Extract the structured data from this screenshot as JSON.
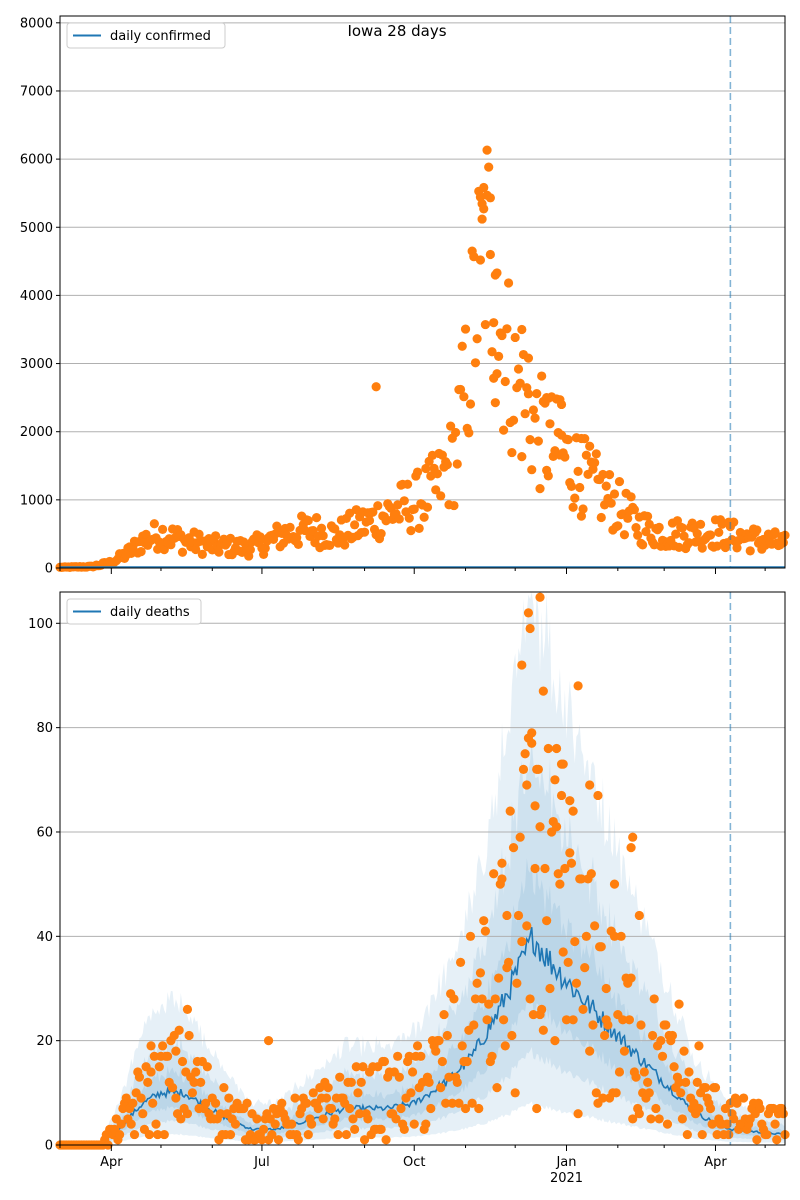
{
  "figure": {
    "title": "Iowa 28 days",
    "colors": {
      "line": "#1f77b4",
      "points": "#ff7f0e",
      "band": "#1f77b4",
      "grid": "#b0b0b0",
      "vline": "#1f77b4"
    }
  },
  "chart_data": [
    {
      "type": "scatter",
      "legend": "daily confirmed",
      "legend_position": "top-left",
      "ylim": [
        0,
        8100
      ],
      "yticks": [
        0,
        1000,
        2000,
        3000,
        4000,
        5000,
        6000,
        7000,
        8000
      ],
      "xlim": [
        "2020-03-01",
        "2021-05-13"
      ],
      "grid": "y",
      "vline": "2021-04-10",
      "anchors": [
        [
          "2020-03-01",
          10
        ],
        [
          "2020-03-20",
          20
        ],
        [
          "2020-04-01",
          80
        ],
        [
          "2020-04-10",
          200
        ],
        [
          "2020-04-20",
          400
        ],
        [
          "2020-05-01",
          500
        ],
        [
          "2020-05-15",
          400
        ],
        [
          "2020-06-01",
          330
        ],
        [
          "2020-06-20",
          300
        ],
        [
          "2020-07-01",
          350
        ],
        [
          "2020-07-15",
          500
        ],
        [
          "2020-08-01",
          560
        ],
        [
          "2020-08-15",
          480
        ],
        [
          "2020-09-01",
          650
        ],
        [
          "2020-09-15",
          800
        ],
        [
          "2020-10-01",
          950
        ],
        [
          "2020-10-15",
          1200
        ],
        [
          "2020-10-25",
          1600
        ],
        [
          "2020-11-01",
          2600
        ],
        [
          "2020-11-08",
          4000
        ],
        [
          "2020-11-13",
          4900
        ],
        [
          "2020-11-20",
          3700
        ],
        [
          "2020-12-01",
          2700
        ],
        [
          "2020-12-15",
          2000
        ],
        [
          "2021-01-01",
          1600
        ],
        [
          "2021-01-15",
          1250
        ],
        [
          "2021-02-01",
          900
        ],
        [
          "2021-02-15",
          600
        ],
        [
          "2021-03-01",
          500
        ],
        [
          "2021-04-01",
          520
        ],
        [
          "2021-05-13",
          350
        ]
      ],
      "outliers": [
        [
          "2020-09-08",
          2660
        ],
        [
          "2020-11-12",
          5270
        ],
        [
          "2020-11-14",
          5470
        ],
        [
          "2020-11-11",
          5120
        ],
        [
          "2020-11-16",
          4600
        ],
        [
          "2020-11-10",
          4520
        ],
        [
          "2020-11-19",
          4300
        ],
        [
          "2020-11-20",
          4330
        ],
        [
          "2020-11-18",
          3600
        ],
        [
          "2020-12-09",
          3080
        ],
        [
          "2020-12-05",
          3500
        ],
        [
          "2020-12-28",
          2470
        ],
        [
          "2020-12-29",
          2400
        ],
        [
          "2021-01-10",
          1900
        ],
        [
          "2020-12-20",
          2500
        ],
        [
          "2020-12-21",
          2490
        ]
      ]
    },
    {
      "type": "line",
      "legend": "daily deaths",
      "legend_position": "top-left",
      "ylim": [
        0,
        106
      ],
      "yticks": [
        0,
        20,
        40,
        60,
        80,
        100
      ],
      "xlim": [
        "2020-03-01",
        "2021-05-13"
      ],
      "xticks_major": [
        {
          "date": "2020-04-01",
          "label": "Apr"
        },
        {
          "date": "2020-07-01",
          "label": "Jul"
        },
        {
          "date": "2020-10-01",
          "label": "Oct"
        },
        {
          "date": "2021-01-01",
          "label": "Jan",
          "sublabel": "2021"
        },
        {
          "date": "2021-04-01",
          "label": "Apr"
        }
      ],
      "xticks_minor": [
        "2020-03-01",
        "2020-05-01",
        "2020-06-01",
        "2020-08-01",
        "2020-09-01",
        "2020-11-01",
        "2020-12-01",
        "2021-02-01",
        "2021-03-01",
        "2021-05-01"
      ],
      "grid": "y",
      "vline": "2021-04-10",
      "median_anchors": [
        [
          "2020-03-01",
          0
        ],
        [
          "2020-03-25",
          0
        ],
        [
          "2020-04-05",
          3
        ],
        [
          "2020-04-20",
          8
        ],
        [
          "2020-05-01",
          10
        ],
        [
          "2020-05-15",
          10
        ],
        [
          "2020-05-25",
          8
        ],
        [
          "2020-06-10",
          5
        ],
        [
          "2020-06-25",
          3
        ],
        [
          "2020-07-10",
          3
        ],
        [
          "2020-08-01",
          5
        ],
        [
          "2020-08-20",
          7
        ],
        [
          "2020-09-15",
          7
        ],
        [
          "2020-10-01",
          8
        ],
        [
          "2020-10-20",
          12
        ],
        [
          "2020-11-05",
          17
        ],
        [
          "2020-11-20",
          25
        ],
        [
          "2020-12-05",
          35
        ],
        [
          "2020-12-12",
          40
        ],
        [
          "2020-12-20",
          36
        ],
        [
          "2021-01-05",
          30
        ],
        [
          "2021-01-20",
          25
        ],
        [
          "2021-02-10",
          18
        ],
        [
          "2021-03-01",
          12
        ],
        [
          "2021-03-20",
          6
        ],
        [
          "2021-04-10",
          3
        ],
        [
          "2021-05-13",
          2
        ]
      ],
      "bands": [
        {
          "label": "outer",
          "lower": 0.2,
          "upper": 2.7
        },
        {
          "label": "mid",
          "lower": 0.45,
          "upper": 1.9
        },
        {
          "label": "inner",
          "lower": 0.7,
          "upper": 1.35
        }
      ],
      "point_anchors": [
        [
          "2020-03-01",
          0
        ],
        [
          "2020-03-25",
          0
        ],
        [
          "2020-04-05",
          3
        ],
        [
          "2020-04-20",
          9
        ],
        [
          "2020-05-01",
          11
        ],
        [
          "2020-05-15",
          13
        ],
        [
          "2020-05-25",
          10
        ],
        [
          "2020-06-10",
          6
        ],
        [
          "2020-06-25",
          4
        ],
        [
          "2020-07-10",
          4
        ],
        [
          "2020-08-01",
          6
        ],
        [
          "2020-08-20",
          8
        ],
        [
          "2020-09-15",
          9
        ],
        [
          "2020-10-01",
          10
        ],
        [
          "2020-10-20",
          15
        ],
        [
          "2020-11-05",
          22
        ],
        [
          "2020-11-20",
          30
        ],
        [
          "2020-12-05",
          40
        ],
        [
          "2020-12-12",
          45
        ],
        [
          "2020-12-20",
          42
        ],
        [
          "2021-01-05",
          33
        ],
        [
          "2021-01-20",
          27
        ],
        [
          "2021-02-10",
          20
        ],
        [
          "2021-03-01",
          14
        ],
        [
          "2021-03-20",
          8
        ],
        [
          "2021-04-10",
          5
        ],
        [
          "2021-05-13",
          4
        ]
      ],
      "outliers": [
        [
          "2020-12-09",
          102
        ],
        [
          "2020-12-16",
          105
        ],
        [
          "2020-12-10",
          99
        ],
        [
          "2020-12-05",
          92
        ],
        [
          "2020-12-18",
          87
        ],
        [
          "2021-01-08",
          88
        ],
        [
          "2020-12-26",
          76
        ],
        [
          "2020-12-11",
          77
        ],
        [
          "2020-12-14",
          72
        ],
        [
          "2020-12-29",
          73
        ],
        [
          "2020-12-30",
          73
        ],
        [
          "2021-01-15",
          69
        ],
        [
          "2021-01-20",
          67
        ],
        [
          "2021-01-03",
          66
        ],
        [
          "2020-12-08",
          69
        ],
        [
          "2020-12-13",
          65
        ],
        [
          "2021-01-05",
          64
        ],
        [
          "2020-12-16",
          61
        ],
        [
          "2021-01-30",
          50
        ],
        [
          "2021-02-14",
          44
        ],
        [
          "2021-02-10",
          59
        ],
        [
          "2021-02-09",
          57
        ],
        [
          "2020-11-23",
          51
        ],
        [
          "2020-11-26",
          44
        ],
        [
          "2020-07-05",
          20
        ],
        [
          "2020-05-17",
          26
        ],
        [
          "2020-05-10",
          18
        ],
        [
          "2020-04-25",
          19
        ],
        [
          "2020-12-25",
          20
        ],
        [
          "2021-01-25",
          24
        ],
        [
          "2021-03-10",
          27
        ],
        [
          "2021-03-22",
          19
        ]
      ]
    }
  ]
}
